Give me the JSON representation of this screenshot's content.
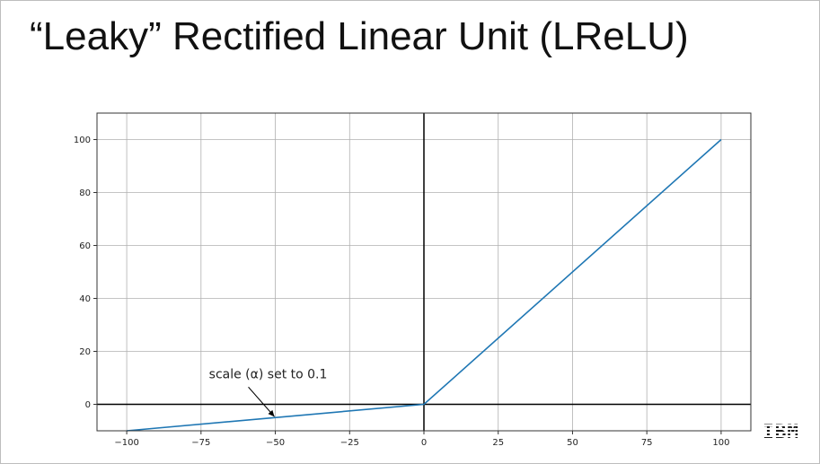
{
  "slide": {
    "title": "“Leaky” Rectified Linear Unit (LReLU)",
    "logo_text": "IBM"
  },
  "chart_data": {
    "type": "line",
    "title": "",
    "xlabel": "",
    "ylabel": "",
    "xlim": [
      -110,
      110
    ],
    "ylim": [
      -10,
      110
    ],
    "grid": true,
    "x_ticks": [
      -100,
      -75,
      -50,
      -25,
      0,
      25,
      50,
      75,
      100
    ],
    "x_tick_labels": [
      "−100",
      "−75",
      "−50",
      "−25",
      "0",
      "25",
      "50",
      "75",
      "100"
    ],
    "y_ticks": [
      0,
      20,
      40,
      60,
      80,
      100
    ],
    "y_tick_labels": [
      "0",
      "20",
      "40",
      "60",
      "80",
      "100"
    ],
    "axes_lines": {
      "x": 0,
      "y": 0
    },
    "series": [
      {
        "x": [
          -100,
          0,
          100
        ],
        "y": [
          -10,
          0,
          100
        ],
        "color": "#1f77b4"
      }
    ],
    "annotations": [
      {
        "text": "scale (α) set to 0.1",
        "x": -50,
        "y": -5
      }
    ]
  }
}
